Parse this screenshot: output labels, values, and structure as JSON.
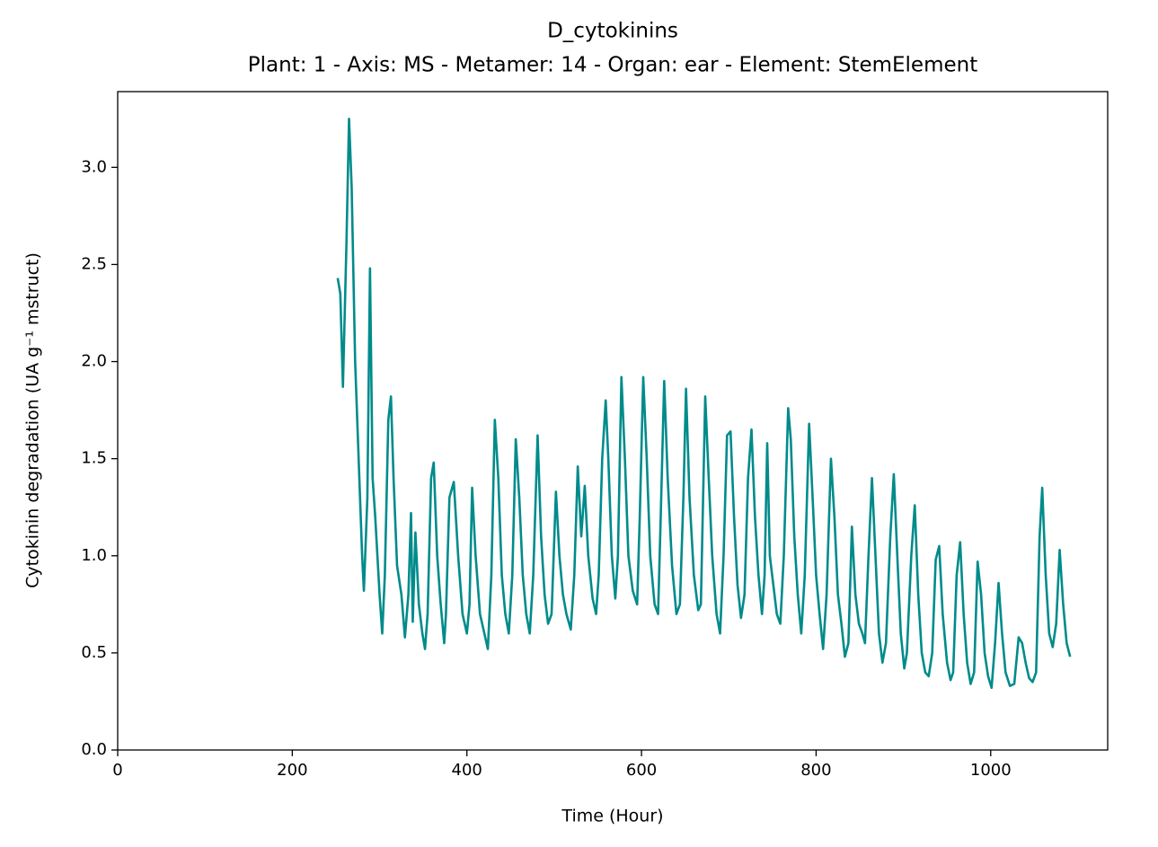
{
  "chart_data": {
    "type": "line",
    "title": "D_cytokinins",
    "subtitle": "Plant: 1 - Axis: MS - Metamer: 14 - Organ: ear - Element: StemElement",
    "xlabel": "Time (Hour)",
    "ylabel": "Cytokinin degradation (UA g⁻¹ mstruct)",
    "color": "#008b8b",
    "x": [
      252,
      255,
      258,
      262,
      265,
      268,
      272,
      276,
      280,
      282,
      286,
      289,
      292,
      295,
      300,
      303,
      306,
      310,
      313,
      316,
      320,
      325,
      329,
      333,
      336,
      338,
      341,
      345,
      349,
      352,
      355,
      359,
      362,
      366,
      370,
      374,
      376,
      380,
      385,
      390,
      395,
      400,
      403,
      406,
      410,
      415,
      420,
      424,
      428,
      432,
      436,
      440,
      444,
      448,
      452,
      456,
      460,
      464,
      468,
      472,
      476,
      481,
      485,
      489,
      493,
      497,
      502,
      506,
      510,
      514,
      519,
      523,
      527,
      531,
      535,
      539,
      544,
      548,
      551,
      555,
      559,
      562,
      566,
      570,
      573,
      577,
      581,
      585,
      590,
      595,
      598,
      602,
      606,
      610,
      615,
      619,
      622,
      626,
      630,
      635,
      640,
      644,
      648,
      651,
      655,
      660,
      665,
      668,
      673,
      677,
      681,
      686,
      690,
      694,
      698,
      702,
      706,
      710,
      714,
      718,
      722,
      726,
      730,
      734,
      738,
      741,
      744,
      747,
      751,
      755,
      759,
      763,
      768,
      771,
      775,
      779,
      783,
      787,
      792,
      796,
      800,
      804,
      808,
      812,
      817,
      821,
      825,
      829,
      833,
      837,
      841,
      845,
      849,
      853,
      856,
      860,
      864,
      868,
      872,
      876,
      880,
      885,
      889,
      893,
      897,
      901,
      904,
      909,
      913,
      917,
      921,
      925,
      929,
      933,
      937,
      941,
      945,
      950,
      954,
      957,
      961,
      965,
      969,
      973,
      977,
      981,
      985,
      989,
      993,
      997,
      1001,
      1005,
      1009,
      1013,
      1017,
      1022,
      1027,
      1032,
      1036,
      1040,
      1044,
      1048,
      1052,
      1056,
      1059,
      1063,
      1067,
      1071,
      1075,
      1079,
      1083,
      1087,
      1091
    ],
    "values": [
      2.43,
      2.35,
      1.87,
      2.6,
      3.25,
      2.9,
      2.0,
      1.5,
      1.0,
      0.82,
      1.3,
      2.48,
      1.4,
      1.2,
      0.8,
      0.6,
      0.9,
      1.7,
      1.82,
      1.4,
      0.95,
      0.8,
      0.58,
      0.8,
      1.22,
      0.66,
      1.12,
      0.75,
      0.6,
      0.52,
      0.7,
      1.4,
      1.48,
      1.0,
      0.75,
      0.55,
      0.7,
      1.3,
      1.38,
      1.0,
      0.7,
      0.6,
      0.75,
      1.35,
      1.0,
      0.7,
      0.6,
      0.52,
      0.9,
      1.7,
      1.4,
      0.9,
      0.7,
      0.6,
      0.9,
      1.6,
      1.3,
      0.9,
      0.7,
      0.6,
      0.9,
      1.62,
      1.1,
      0.8,
      0.65,
      0.7,
      1.33,
      1.0,
      0.8,
      0.7,
      0.62,
      0.9,
      1.46,
      1.1,
      1.36,
      1.0,
      0.78,
      0.7,
      0.9,
      1.5,
      1.8,
      1.5,
      1.0,
      0.78,
      1.0,
      1.92,
      1.5,
      1.0,
      0.82,
      0.75,
      1.2,
      1.92,
      1.5,
      1.0,
      0.75,
      0.7,
      1.2,
      1.9,
      1.4,
      0.95,
      0.7,
      0.75,
      1.3,
      1.86,
      1.3,
      0.9,
      0.72,
      0.75,
      1.82,
      1.4,
      1.0,
      0.7,
      0.6,
      1.0,
      1.62,
      1.64,
      1.2,
      0.85,
      0.68,
      0.8,
      1.4,
      1.65,
      1.2,
      0.9,
      0.7,
      0.9,
      1.58,
      1.0,
      0.85,
      0.7,
      0.65,
      1.0,
      1.76,
      1.6,
      1.1,
      0.8,
      0.6,
      0.9,
      1.68,
      1.3,
      0.9,
      0.7,
      0.52,
      0.8,
      1.5,
      1.2,
      0.8,
      0.65,
      0.48,
      0.55,
      1.15,
      0.8,
      0.65,
      0.6,
      0.55,
      1.0,
      1.4,
      1.0,
      0.6,
      0.45,
      0.55,
      1.1,
      1.42,
      1.0,
      0.6,
      0.42,
      0.5,
      1.0,
      1.26,
      0.8,
      0.5,
      0.4,
      0.38,
      0.5,
      0.98,
      1.05,
      0.7,
      0.45,
      0.36,
      0.4,
      0.9,
      1.07,
      0.7,
      0.45,
      0.34,
      0.4,
      0.97,
      0.8,
      0.5,
      0.38,
      0.32,
      0.55,
      0.86,
      0.6,
      0.4,
      0.33,
      0.34,
      0.58,
      0.55,
      0.45,
      0.37,
      0.35,
      0.4,
      1.1,
      1.35,
      0.9,
      0.6,
      0.53,
      0.65,
      1.03,
      0.75,
      0.55,
      0.48
    ],
    "xlim": [
      0,
      1134
    ],
    "ylim": [
      0,
      3.39
    ],
    "xticks": [
      0,
      200,
      400,
      600,
      800,
      1000
    ],
    "yticks": [
      {
        "value": 0,
        "label": "0.0"
      },
      {
        "value": 0.5,
        "label": "0.5"
      },
      {
        "value": 1,
        "label": "1.0"
      },
      {
        "value": 1.5,
        "label": "1.5"
      },
      {
        "value": 2,
        "label": "2.0"
      },
      {
        "value": 2.5,
        "label": "2.5"
      },
      {
        "value": 3,
        "label": "3.0"
      }
    ]
  }
}
